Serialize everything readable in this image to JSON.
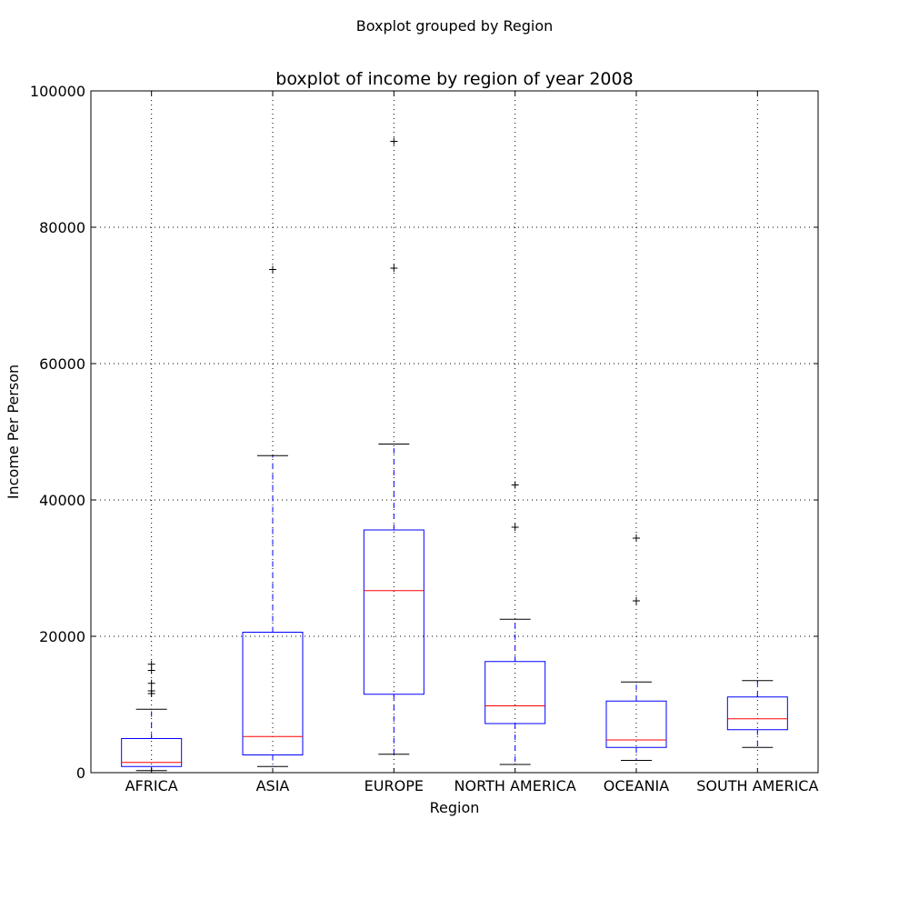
{
  "figure": {
    "suptitle": "Boxplot grouped by Region"
  },
  "chart_data": {
    "type": "box",
    "title": "boxplot of income by region of year 2008",
    "xlabel": "Region",
    "ylabel": "Income Per Person",
    "ylim": [
      0,
      100000
    ],
    "yticks": [
      0,
      20000,
      40000,
      60000,
      80000,
      100000
    ],
    "grid": true,
    "colors": {
      "box": "#0000ff",
      "median": "#ff0000",
      "whisker": "#0000ff",
      "cap": "#000000",
      "flier": "#000000"
    },
    "categories": [
      "AFRICA",
      "ASIA",
      "EUROPE",
      "NORTH AMERICA",
      "OCEANIA",
      "SOUTH AMERICA"
    ],
    "boxes": [
      {
        "label": "AFRICA",
        "whisker_low": 300,
        "q1": 900,
        "median": 1500,
        "q3": 5000,
        "whisker_high": 9300,
        "outliers": [
          11600,
          12000,
          13100,
          15000,
          15900
        ]
      },
      {
        "label": "ASIA",
        "whisker_low": 900,
        "q1": 2600,
        "median": 5300,
        "q3": 20600,
        "whisker_high": 46500,
        "outliers": [
          73800
        ]
      },
      {
        "label": "EUROPE",
        "whisker_low": 2700,
        "q1": 11500,
        "median": 26700,
        "q3": 35600,
        "whisker_high": 48200,
        "outliers": [
          74000,
          92600
        ]
      },
      {
        "label": "NORTH AMERICA",
        "whisker_low": 1200,
        "q1": 7200,
        "median": 9800,
        "q3": 16300,
        "whisker_high": 22500,
        "outliers": [
          36000,
          42200
        ]
      },
      {
        "label": "OCEANIA",
        "whisker_low": 1800,
        "q1": 3700,
        "median": 4800,
        "q3": 10500,
        "whisker_high": 13300,
        "outliers": [
          25200,
          34400
        ]
      },
      {
        "label": "SOUTH AMERICA",
        "whisker_low": 3700,
        "q1": 6300,
        "median": 7900,
        "q3": 11100,
        "whisker_high": 13500,
        "outliers": []
      }
    ]
  }
}
